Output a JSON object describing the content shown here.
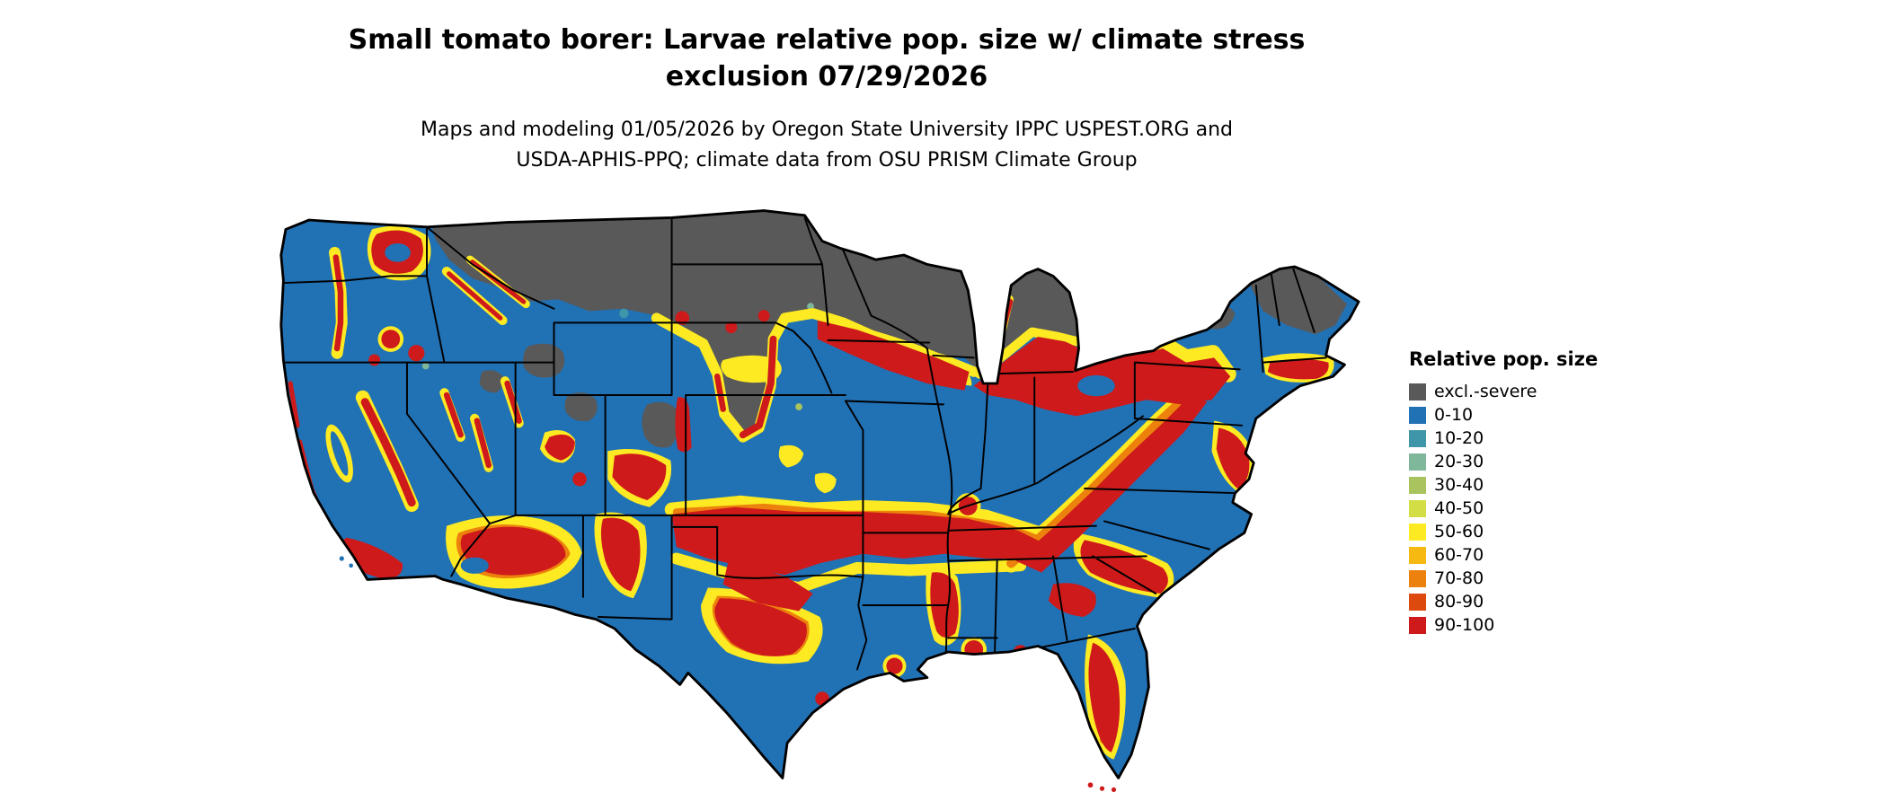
{
  "header": {
    "title_line1": "Small tomato borer: Larvae relative pop. size w/ climate stress",
    "title_line2": "exclusion 07/29/2026",
    "subtitle_line1": "Maps and modeling 01/05/2026 by Oregon State University IPPC USPEST.ORG and",
    "subtitle_line2": "USDA-APHIS-PPQ; climate data from OSU PRISM Climate Group"
  },
  "legend": {
    "title": "Relative pop. size",
    "entries": [
      {
        "label": "excl.-severe",
        "color": "#595959"
      },
      {
        "label": "0-10",
        "color": "#2171b5"
      },
      {
        "label": "10-20",
        "color": "#3f96a8"
      },
      {
        "label": "20-30",
        "color": "#7fb79a"
      },
      {
        "label": "30-40",
        "color": "#a9c45f"
      },
      {
        "label": "40-50",
        "color": "#d3de46"
      },
      {
        "label": "50-60",
        "color": "#fdea22"
      },
      {
        "label": "60-70",
        "color": "#f6b911"
      },
      {
        "label": "70-80",
        "color": "#ec820d"
      },
      {
        "label": "80-90",
        "color": "#dc4a0e"
      },
      {
        "label": "90-100",
        "color": "#ce1a1b"
      }
    ]
  },
  "map": {
    "region": "Contiguous United States",
    "background_color": "#ffffff",
    "border_color": "#000000"
  }
}
